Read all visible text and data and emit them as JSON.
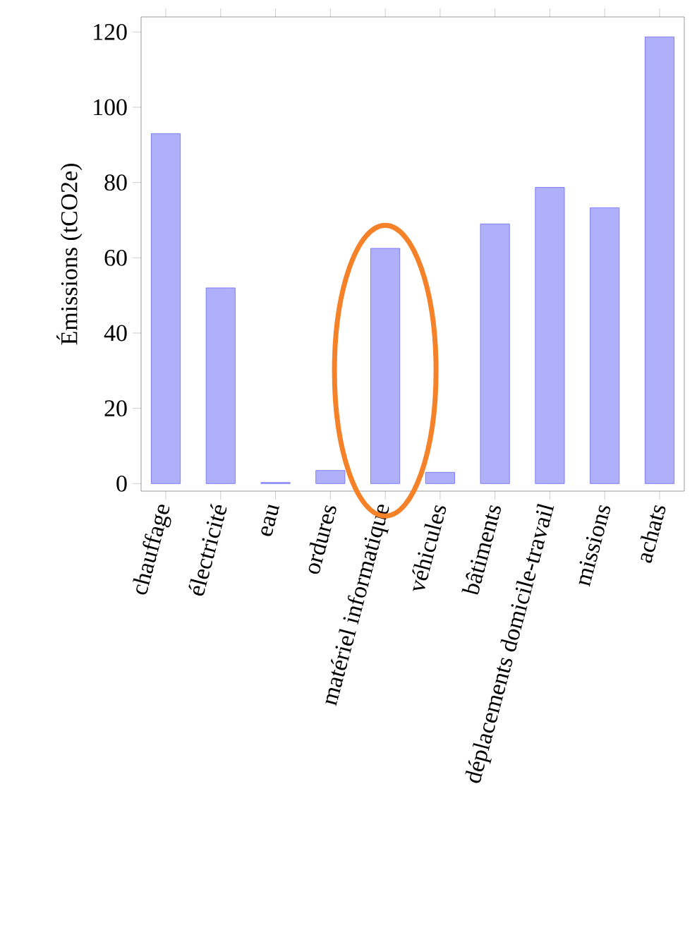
{
  "chart_data": {
    "type": "bar",
    "ylabel": "Émissions (tCO2e)",
    "categories": [
      "chauffage",
      "électricité",
      "eau",
      "ordures",
      "matériel informatique",
      "véhicules",
      "bâtiments",
      "déplacements domicile-travail",
      "missions",
      "achats"
    ],
    "values": [
      93,
      52,
      0.3,
      3.5,
      62.5,
      3,
      69,
      78.7,
      73.3,
      118.7
    ],
    "color": "#b0b0fa",
    "ylim": [
      -2,
      124
    ],
    "yticks": [
      0,
      20,
      40,
      60,
      80,
      100,
      120
    ]
  }
}
